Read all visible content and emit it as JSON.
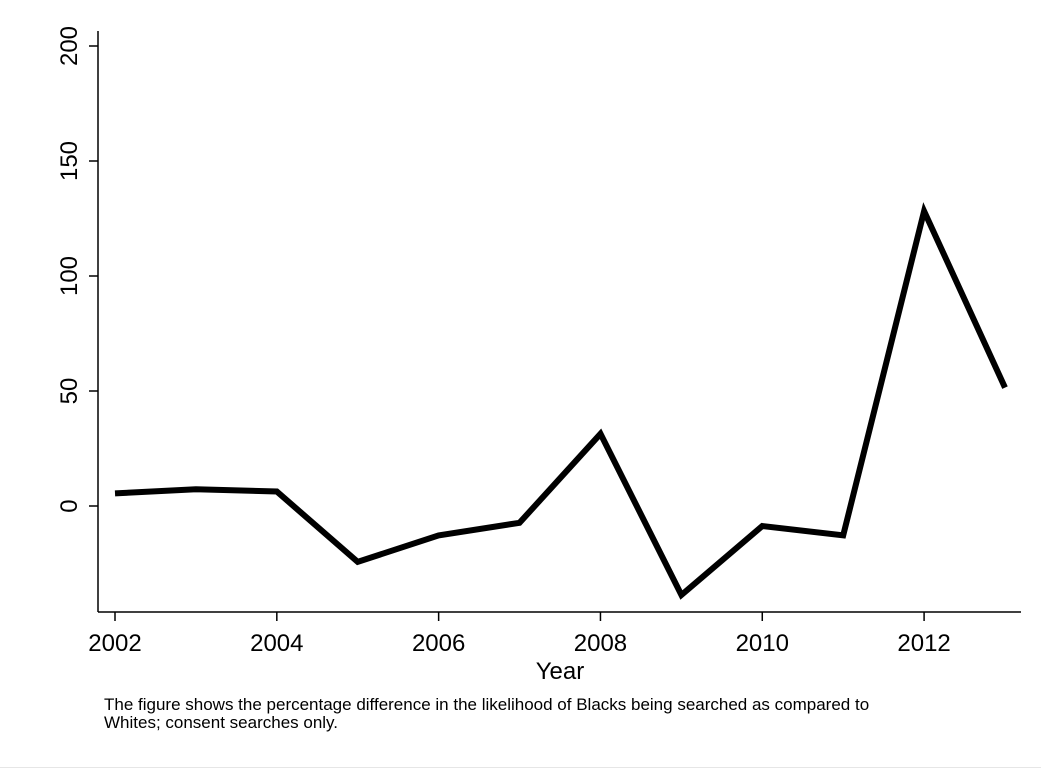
{
  "chart_data": {
    "type": "line",
    "title": "",
    "xlabel": "Year",
    "ylabel": "",
    "x": [
      2002,
      2003,
      2004,
      2005,
      2006,
      2007,
      2008,
      2009,
      2010,
      2011,
      2012,
      2013
    ],
    "series": [
      {
        "values": [
          5.5,
          7.3,
          6.3,
          -24.3,
          -12.8,
          -7.3,
          31.4,
          -38.7,
          -8.7,
          -12.8,
          128.2,
          51.5
        ]
      }
    ],
    "x_ticks": [
      "2002",
      "2004",
      "2006",
      "2008",
      "2010",
      "2012"
    ],
    "y_ticks": [
      "0",
      "50",
      "100",
      "150",
      "200"
    ],
    "xlim": [
      2001.8,
      2013.2
    ],
    "ylim": [
      -46,
      200
    ],
    "grid": false,
    "line_color": "#000000"
  },
  "caption": "The figure shows the percentage difference in the likelihood of Blacks being searched as compared to Whites; consent searches only."
}
